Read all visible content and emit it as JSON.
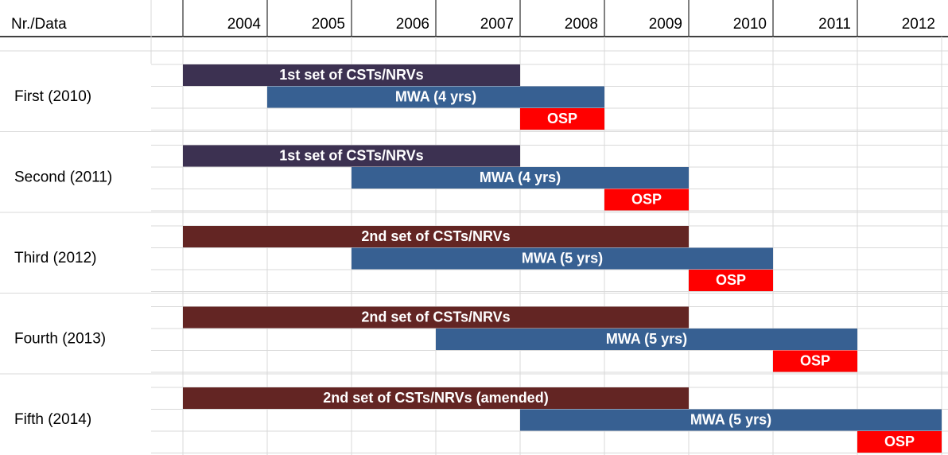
{
  "header": {
    "label": "Nr./Data",
    "years": [
      2004,
      2005,
      2006,
      2007,
      2008,
      2009,
      2010,
      2011,
      2012
    ]
  },
  "groups": [
    {
      "label": "First (2010)",
      "bars": [
        {
          "label": "1st set of CSTs/NRVs",
          "start": 2004,
          "end": 2007,
          "color": "#3c3151"
        },
        {
          "label": "MWA (4 yrs)",
          "start": 2005,
          "end": 2008,
          "color": "#376092"
        },
        {
          "label": "OSP",
          "start": 2008,
          "end": 2008,
          "color": "#ff0000"
        }
      ]
    },
    {
      "label": "Second (2011)",
      "bars": [
        {
          "label": "1st set of CSTs/NRVs",
          "start": 2004,
          "end": 2007,
          "color": "#3c3151"
        },
        {
          "label": "MWA (4 yrs)",
          "start": 2006,
          "end": 2009,
          "color": "#376092"
        },
        {
          "label": "OSP",
          "start": 2009,
          "end": 2009,
          "color": "#ff0000"
        }
      ]
    },
    {
      "label": "Third (2012)",
      "bars": [
        {
          "label": "2nd set of CSTs/NRVs",
          "start": 2004,
          "end": 2009,
          "color": "#632523"
        },
        {
          "label": "MWA (5 yrs)",
          "start": 2006,
          "end": 2010,
          "color": "#376092"
        },
        {
          "label": "OSP",
          "start": 2010,
          "end": 2010,
          "color": "#ff0000"
        }
      ]
    },
    {
      "label": "Fourth (2013)",
      "bars": [
        {
          "label": "2nd set of CSTs/NRVs",
          "start": 2004,
          "end": 2009,
          "color": "#632523"
        },
        {
          "label": "MWA (5 yrs)",
          "start": 2007,
          "end": 2011,
          "color": "#376092"
        },
        {
          "label": "OSP",
          "start": 2011,
          "end": 2011,
          "color": "#ff0000"
        }
      ]
    },
    {
      "label": "Fifth (2014)",
      "bars": [
        {
          "label": "2nd set of CSTs/NRVs (amended)",
          "start": 2004,
          "end": 2009,
          "color": "#632523"
        },
        {
          "label": "MWA (5 yrs)",
          "start": 2008,
          "end": 2012,
          "color": "#376092"
        },
        {
          "label": "OSP",
          "start": 2012,
          "end": 2012,
          "color": "#ff0000"
        }
      ]
    }
  ]
}
